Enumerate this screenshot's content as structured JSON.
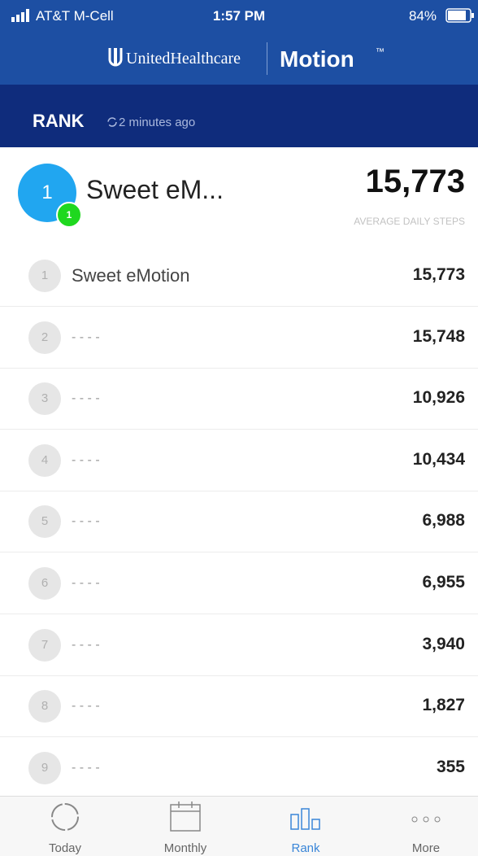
{
  "status_bar": {
    "carrier": "AT&T M-Cell",
    "time": "1:57 PM",
    "battery": "84%"
  },
  "header": {
    "brand": "UnitedHealthcare",
    "product": "Motion",
    "trademark": "™"
  },
  "rank_bar": {
    "title": "RANK",
    "updated": "2 minutes ago"
  },
  "summary": {
    "rank": "1",
    "badge": "1",
    "name": "Sweet eM...",
    "steps": "15,773",
    "steps_label": "AVERAGE DAILY STEPS"
  },
  "rows": [
    {
      "rank": "1",
      "name": "Sweet eMotion",
      "steps": "15,773"
    },
    {
      "rank": "2",
      "name": "- - - -",
      "steps": "15,748"
    },
    {
      "rank": "3",
      "name": "- - - -",
      "steps": "10,926"
    },
    {
      "rank": "4",
      "name": "- - - -",
      "steps": "10,434"
    },
    {
      "rank": "5",
      "name": "- - - -",
      "steps": "6,988"
    },
    {
      "rank": "6",
      "name": "- - - -",
      "steps": "6,955"
    },
    {
      "rank": "7",
      "name": "- - - -",
      "steps": "3,940"
    },
    {
      "rank": "8",
      "name": "- - - -",
      "steps": "1,827"
    },
    {
      "rank": "9",
      "name": "- - - -",
      "steps": "355"
    }
  ],
  "tabs": [
    "Today",
    "Monthly",
    "Rank",
    "More"
  ]
}
